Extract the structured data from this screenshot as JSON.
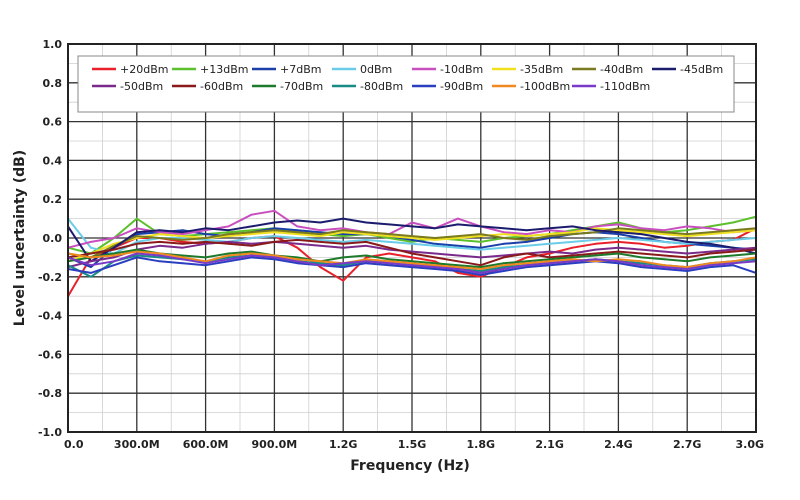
{
  "chart_data": {
    "type": "line",
    "title": "",
    "xlabel": "Frequency (Hz)",
    "ylabel": "Level uncertainty (dB)",
    "xlim": [
      0,
      3.0
    ],
    "ylim": [
      -1.0,
      1.0
    ],
    "grid": true,
    "legend_placement": "top",
    "x_ticks": [
      "0.0",
      "300.0M",
      "600.0M",
      "900.0M",
      "1.2G",
      "1.5G",
      "1.8G",
      "2.1G",
      "2.4G",
      "2.7G",
      "3.0G"
    ],
    "y_ticks": [
      "1.0",
      "0.8",
      "0.6",
      "0.4",
      "0.2",
      "0.0",
      "-0.2",
      "-0.4",
      "-0.6",
      "-0.8",
      "-1.0"
    ],
    "x": [
      0.0,
      0.1,
      0.2,
      0.3,
      0.4,
      0.5,
      0.6,
      0.7,
      0.8,
      0.9,
      1.0,
      1.1,
      1.2,
      1.3,
      1.4,
      1.5,
      1.6,
      1.7,
      1.8,
      1.9,
      2.0,
      2.1,
      2.2,
      2.3,
      2.4,
      2.5,
      2.6,
      2.7,
      2.8,
      2.9,
      3.0
    ],
    "series": [
      {
        "name": "+20dBm",
        "color": "#e8202a",
        "values": [
          -0.3,
          -0.1,
          -0.05,
          0.0,
          0.0,
          -0.02,
          -0.03,
          -0.02,
          0.0,
          0.01,
          -0.05,
          -0.15,
          -0.22,
          -0.1,
          -0.08,
          -0.1,
          -0.12,
          -0.18,
          -0.2,
          -0.15,
          -0.1,
          -0.08,
          -0.05,
          -0.03,
          -0.02,
          -0.03,
          -0.05,
          -0.04,
          -0.02,
          -0.01,
          0.05
        ]
      },
      {
        "name": "+13dBm",
        "color": "#5cc02d",
        "values": [
          -0.05,
          -0.08,
          0.0,
          0.1,
          0.02,
          0.01,
          0.02,
          0.03,
          0.04,
          0.05,
          0.03,
          0.02,
          0.01,
          0.02,
          0.0,
          -0.02,
          0.0,
          -0.01,
          -0.02,
          0.0,
          0.01,
          0.02,
          0.04,
          0.06,
          0.08,
          0.05,
          0.03,
          0.04,
          0.06,
          0.08,
          0.11
        ]
      },
      {
        "name": "+7dBm",
        "color": "#1a3fa8",
        "values": [
          -0.1,
          -0.15,
          -0.05,
          0.02,
          0.03,
          0.04,
          0.02,
          0.01,
          0.03,
          0.05,
          0.04,
          0.03,
          0.02,
          0.02,
          0.01,
          -0.01,
          -0.03,
          -0.04,
          -0.05,
          -0.03,
          -0.02,
          0.0,
          0.02,
          0.03,
          0.02,
          0.0,
          -0.02,
          -0.03,
          -0.04,
          -0.05,
          -0.06
        ]
      },
      {
        "name": "0dBm",
        "color": "#6bcce8",
        "values": [
          0.1,
          -0.05,
          -0.08,
          -0.02,
          0.0,
          0.0,
          -0.01,
          -0.02,
          0.0,
          0.01,
          0.0,
          -0.01,
          -0.02,
          -0.01,
          -0.02,
          -0.03,
          -0.04,
          -0.05,
          -0.06,
          -0.05,
          -0.04,
          -0.03,
          -0.02,
          -0.01,
          0.0,
          -0.01,
          -0.02,
          -0.03,
          -0.02,
          -0.01,
          0.0
        ]
      },
      {
        "name": "-10dBm",
        "color": "#c94fc0",
        "values": [
          -0.05,
          -0.02,
          0.0,
          0.05,
          0.03,
          0.02,
          0.04,
          0.06,
          0.12,
          0.14,
          0.06,
          0.04,
          0.05,
          0.03,
          0.02,
          0.08,
          0.05,
          0.1,
          0.06,
          0.03,
          0.02,
          0.04,
          0.03,
          0.06,
          0.07,
          0.05,
          0.04,
          0.06,
          0.05,
          0.03,
          0.04
        ]
      },
      {
        "name": "-35dBm",
        "color": "#f0e020",
        "values": [
          -0.12,
          -0.08,
          -0.03,
          0.0,
          0.02,
          0.01,
          0.0,
          0.01,
          0.02,
          0.03,
          0.02,
          0.01,
          0.03,
          0.02,
          0.01,
          0.0,
          -0.01,
          0.0,
          0.01,
          0.02,
          0.01,
          0.02,
          0.03,
          0.05,
          0.04,
          0.03,
          0.02,
          0.01,
          0.02,
          0.03,
          0.04
        ]
      },
      {
        "name": "-40dBm",
        "color": "#7a7a1e",
        "values": [
          -0.08,
          -0.1,
          -0.04,
          0.01,
          0.0,
          -0.01,
          0.0,
          0.02,
          0.03,
          0.04,
          0.03,
          0.02,
          0.04,
          0.03,
          0.02,
          0.01,
          0.0,
          0.01,
          0.02,
          0.0,
          -0.01,
          0.01,
          0.02,
          0.03,
          0.05,
          0.04,
          0.03,
          0.02,
          0.03,
          0.04,
          0.05
        ]
      },
      {
        "name": "-45dBm",
        "color": "#1c1c6e",
        "values": [
          0.06,
          -0.12,
          -0.05,
          0.03,
          0.04,
          0.03,
          0.05,
          0.04,
          0.06,
          0.08,
          0.09,
          0.08,
          0.1,
          0.08,
          0.07,
          0.06,
          0.05,
          0.07,
          0.06,
          0.05,
          0.04,
          0.05,
          0.06,
          0.04,
          0.03,
          0.02,
          0.0,
          -0.02,
          -0.03,
          -0.05,
          -0.08
        ]
      },
      {
        "name": "-50dBm",
        "color": "#7a2a8a",
        "values": [
          -0.15,
          -0.12,
          -0.1,
          -0.06,
          -0.04,
          -0.05,
          -0.03,
          -0.02,
          -0.03,
          -0.02,
          -0.03,
          -0.04,
          -0.05,
          -0.04,
          -0.06,
          -0.07,
          -0.08,
          -0.09,
          -0.1,
          -0.09,
          -0.08,
          -0.07,
          -0.08,
          -0.06,
          -0.05,
          -0.06,
          -0.07,
          -0.08,
          -0.07,
          -0.06,
          -0.05
        ]
      },
      {
        "name": "-60dBm",
        "color": "#8a1a1a",
        "values": [
          -0.1,
          -0.08,
          -0.06,
          -0.03,
          -0.02,
          -0.03,
          -0.02,
          -0.03,
          -0.04,
          -0.02,
          -0.01,
          -0.02,
          -0.03,
          -0.02,
          -0.05,
          -0.08,
          -0.1,
          -0.12,
          -0.14,
          -0.1,
          -0.08,
          -0.1,
          -0.09,
          -0.08,
          -0.07,
          -0.08,
          -0.09,
          -0.1,
          -0.08,
          -0.07,
          -0.06
        ]
      },
      {
        "name": "-70dBm",
        "color": "#1e7a2a",
        "values": [
          -0.12,
          -0.1,
          -0.08,
          -0.06,
          -0.08,
          -0.09,
          -0.1,
          -0.08,
          -0.07,
          -0.09,
          -0.1,
          -0.12,
          -0.1,
          -0.09,
          -0.11,
          -0.12,
          -0.13,
          -0.14,
          -0.15,
          -0.13,
          -0.12,
          -0.11,
          -0.1,
          -0.09,
          -0.08,
          -0.1,
          -0.11,
          -0.12,
          -0.1,
          -0.09,
          -0.08
        ]
      },
      {
        "name": "-80dBm",
        "color": "#1a8a86",
        "values": [
          -0.14,
          -0.2,
          -0.12,
          -0.09,
          -0.1,
          -0.11,
          -0.12,
          -0.1,
          -0.09,
          -0.1,
          -0.12,
          -0.13,
          -0.14,
          -0.12,
          -0.13,
          -0.14,
          -0.15,
          -0.16,
          -0.17,
          -0.15,
          -0.14,
          -0.13,
          -0.12,
          -0.11,
          -0.12,
          -0.13,
          -0.14,
          -0.15,
          -0.13,
          -0.12,
          -0.11
        ]
      },
      {
        "name": "-90dBm",
        "color": "#2a3ec0",
        "values": [
          -0.16,
          -0.18,
          -0.14,
          -0.1,
          -0.12,
          -0.13,
          -0.14,
          -0.12,
          -0.1,
          -0.11,
          -0.13,
          -0.14,
          -0.15,
          -0.13,
          -0.14,
          -0.15,
          -0.16,
          -0.17,
          -0.19,
          -0.17,
          -0.15,
          -0.14,
          -0.13,
          -0.12,
          -0.13,
          -0.15,
          -0.16,
          -0.17,
          -0.15,
          -0.14,
          -0.18
        ]
      },
      {
        "name": "-100dBm",
        "color": "#f08a20",
        "values": [
          -0.08,
          -0.1,
          -0.09,
          -0.07,
          -0.08,
          -0.1,
          -0.12,
          -0.09,
          -0.08,
          -0.09,
          -0.11,
          -0.12,
          -0.13,
          -0.11,
          -0.12,
          -0.13,
          -0.14,
          -0.15,
          -0.16,
          -0.14,
          -0.13,
          -0.12,
          -0.11,
          -0.12,
          -0.11,
          -0.12,
          -0.14,
          -0.15,
          -0.13,
          -0.12,
          -0.1
        ]
      },
      {
        "name": "-110dBm",
        "color": "#7a3ac8",
        "values": [
          -0.1,
          -0.14,
          -0.12,
          -0.08,
          -0.09,
          -0.11,
          -0.13,
          -0.11,
          -0.09,
          -0.1,
          -0.12,
          -0.14,
          -0.13,
          -0.12,
          -0.13,
          -0.14,
          -0.15,
          -0.16,
          -0.18,
          -0.16,
          -0.14,
          -0.13,
          -0.12,
          -0.11,
          -0.12,
          -0.14,
          -0.15,
          -0.16,
          -0.14,
          -0.13,
          -0.12
        ]
      }
    ]
  }
}
